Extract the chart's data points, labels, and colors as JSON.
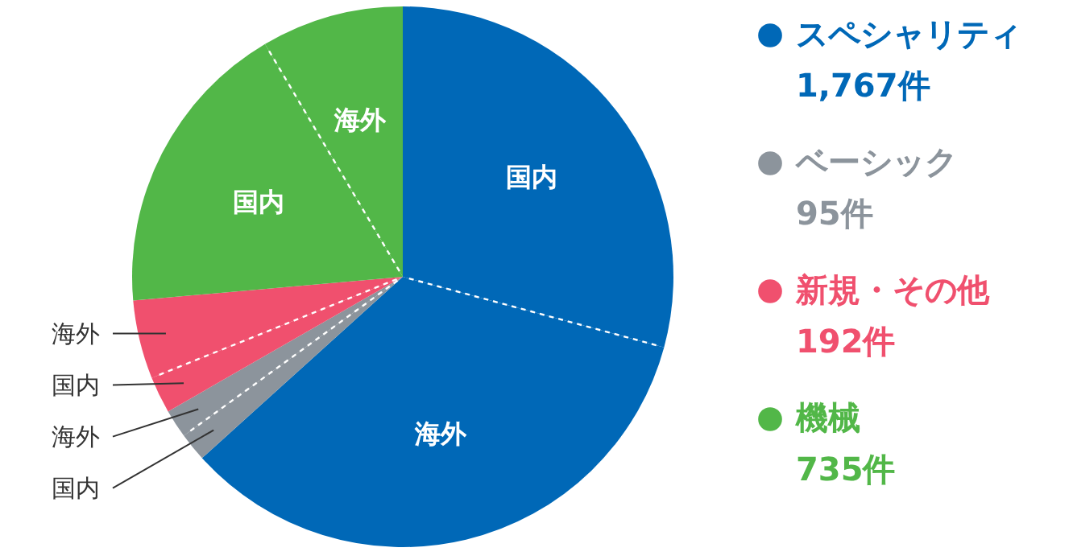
{
  "chart_data": {
    "type": "pie",
    "categories": [
      "国内",
      "海外",
      "国内",
      "海外",
      "国内",
      "海外",
      "国内",
      "海外"
    ],
    "values": [
      29.2,
      34.1,
      1.7,
      1.7,
      2.2,
      4.7,
      17.9,
      8.5
    ],
    "colors": [
      "#0068b7",
      "#0068b7",
      "#8c949c",
      "#8c949c",
      "#f0506e",
      "#f0506e",
      "#52b748",
      "#52b748"
    ],
    "annotations": [
      "スペシャリティ",
      "1,767件",
      "ベーシック",
      "95件",
      "新規・その他",
      "192件",
      "機械",
      "735件"
    ]
  }
}
